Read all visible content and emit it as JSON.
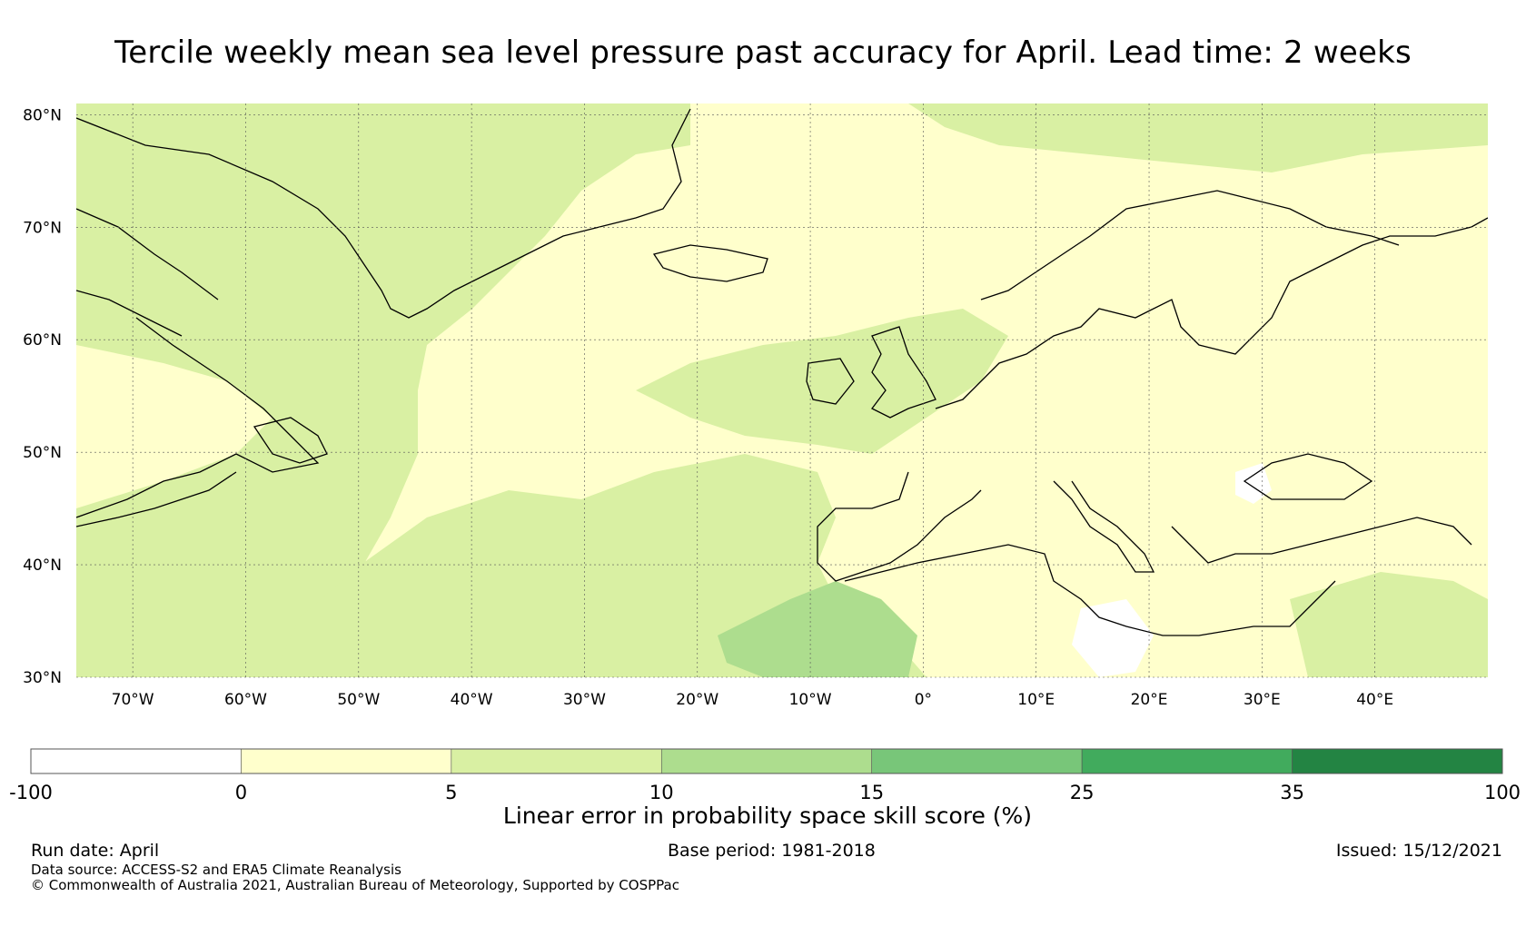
{
  "title": "Tercile weekly mean sea level pressure past accuracy for April. Lead time: 2 weeks",
  "map": {
    "lat_labels": [
      "80°N",
      "70°N",
      "60°N",
      "50°N",
      "40°N",
      "30°N"
    ],
    "lon_labels": [
      "70°W",
      "60°W",
      "50°W",
      "40°W",
      "30°W",
      "20°W",
      "10°W",
      "0°",
      "10°E",
      "20°E",
      "30°E",
      "40°E"
    ],
    "lat_values": [
      80,
      70,
      60,
      50,
      40,
      30
    ],
    "lon_values": [
      -70,
      -60,
      -50,
      -40,
      -30,
      -20,
      -10,
      0,
      10,
      20,
      30,
      40
    ],
    "extent": {
      "lon_min": -75,
      "lon_max": 50,
      "lat_min": 30,
      "lat_max": 81
    },
    "gridlines": true
  },
  "colorbar": {
    "boundaries": [
      "-100",
      "0",
      "5",
      "10",
      "15",
      "25",
      "35",
      "100"
    ],
    "colors": [
      "#ffffff",
      "#ffffcc",
      "#d9f0a3",
      "#addd8e",
      "#78c679",
      "#41ab5d",
      "#238443"
    ],
    "label": "Linear error in probability space skill score (%)"
  },
  "footer": {
    "run_date": "Run date: April",
    "base_period": "Base period: 1981-2018",
    "issued": "Issued: 15/12/2021",
    "data_source": "Data source: ACCESS-S2 and ERA5 Climate Reanalysis",
    "copyright": "© Commonwealth of Australia 2021, Australian Bureau of Meteorology, Supported by COSPPac"
  }
}
